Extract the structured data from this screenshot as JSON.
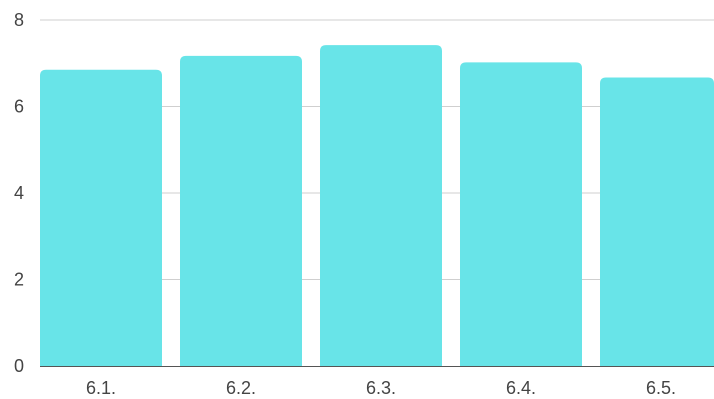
{
  "chart_data": {
    "type": "bar",
    "categories": [
      "6.1.",
      "6.2.",
      "6.3.",
      "6.4.",
      "6.5."
    ],
    "values": [
      6.85,
      7.17,
      7.42,
      7.02,
      6.67
    ],
    "ylim": [
      0,
      8
    ],
    "yticks": [
      0,
      2,
      4,
      6,
      8
    ],
    "grid": true,
    "bar_color": "#68E4E8",
    "title": "",
    "xlabel": "",
    "ylabel": ""
  }
}
